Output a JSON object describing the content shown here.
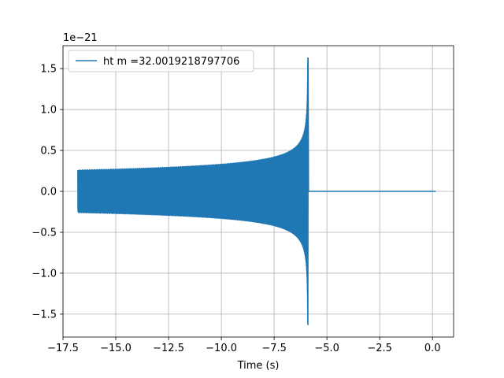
{
  "chart_data": {
    "type": "line",
    "title": "",
    "xlabel": "Time (s)",
    "ylabel": "",
    "y_offset_text": "1e−21",
    "y_scale": "1e-21",
    "xlim": [
      -17.5,
      1.0
    ],
    "ylim": [
      -1.78,
      1.78
    ],
    "grid": true,
    "legend_position": "upper-left",
    "x_ticks": [
      -17.5,
      -15.0,
      -12.5,
      -10.0,
      -7.5,
      -5.0,
      -2.5,
      0.0
    ],
    "x_tick_labels": [
      "−17.5",
      "−15.0",
      "−12.5",
      "−10.0",
      "−7.5",
      "−5.0",
      "−2.5",
      "0.0"
    ],
    "y_ticks": [
      -1.5,
      -1.0,
      -0.5,
      0.0,
      0.5,
      1.0,
      1.5
    ],
    "y_tick_labels": [
      "−1.5",
      "−1.0",
      "−0.5",
      "0.0",
      "0.5",
      "1.0",
      "1.5"
    ],
    "series": [
      {
        "name": "ht m =32.0019218797706",
        "color": "#1f77b4",
        "description_points": {
          "start_time": -16.8,
          "merger_time": -5.9,
          "end_time": 0.15,
          "envelope_start": 0.26,
          "envelope_near_merger": 0.5,
          "peak_positive": 1.63,
          "peak_negative": -1.6
        }
      }
    ]
  }
}
